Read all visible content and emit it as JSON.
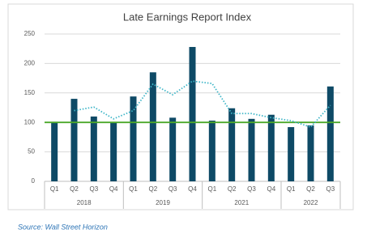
{
  "chart_data": {
    "type": "bar",
    "title": "Late Earnings Report Index",
    "groups": [
      {
        "label": "2018",
        "categories": [
          "Q1",
          "Q2",
          "Q3",
          "Q4"
        ]
      },
      {
        "label": "2019",
        "categories": [
          "Q1",
          "Q2",
          "Q3",
          "Q4"
        ]
      },
      {
        "label": "2021",
        "categories": [
          "Q1",
          "Q2",
          "Q3",
          "Q4"
        ]
      },
      {
        "label": "2022",
        "categories": [
          "Q1",
          "Q2",
          "Q3"
        ]
      }
    ],
    "series": [
      {
        "type": "bar",
        "color": "#0e4a66",
        "values": [
          101,
          140,
          110,
          100,
          144,
          185,
          108,
          228,
          103,
          124,
          106,
          113,
          92,
          95,
          161
        ]
      },
      {
        "type": "line",
        "color": "#3fb6c8",
        "dashed": true,
        "values": [
          null,
          120,
          126,
          106,
          120,
          165,
          147,
          170,
          166,
          115,
          115,
          108,
          103,
          92,
          129
        ]
      }
    ],
    "reference_line": {
      "value": 100,
      "color": "#4ca82a"
    },
    "ylim": [
      0,
      250
    ],
    "yticks": [
      0,
      50,
      100,
      150,
      200,
      250
    ],
    "grid": true,
    "source": "Source: Wall Street Horizon"
  }
}
